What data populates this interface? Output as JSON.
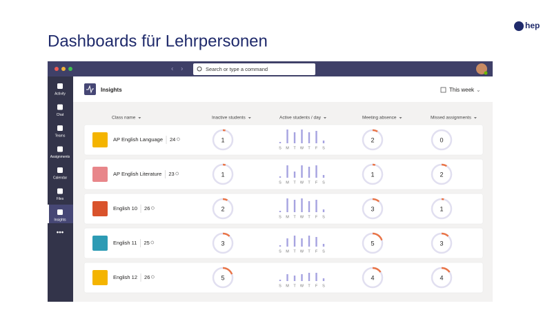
{
  "slide": {
    "title": "Dashboards für Lehrpersonen",
    "logo": "hep"
  },
  "app": {
    "search_placeholder": "Search or type a command",
    "rail": [
      "Activity",
      "Chat",
      "Teams",
      "Assignments",
      "Calendar",
      "Files",
      "Insights"
    ],
    "active_rail": "Insights",
    "page_title": "Insights",
    "period": "This week",
    "columns": [
      "Class name",
      "Inactive students",
      "Active students / day",
      "Meeting absence",
      "Missed assignments"
    ],
    "weekdays": [
      "S",
      "M",
      "T",
      "W",
      "T",
      "F",
      "S"
    ],
    "rows": [
      {
        "name": "AP English Language",
        "students": 24,
        "inactive": 1,
        "activity": [
          10,
          100,
          80,
          100,
          80,
          90,
          20
        ],
        "meeting_absence": 2,
        "missed_assignments": 0
      },
      {
        "name": "AP English Literature",
        "students": 23,
        "inactive": 1,
        "activity": [
          10,
          90,
          45,
          90,
          80,
          90,
          20
        ],
        "meeting_absence": 1,
        "missed_assignments": 2
      },
      {
        "name": "English 10",
        "students": 26,
        "inactive": 2,
        "activity": [
          10,
          100,
          90,
          100,
          80,
          90,
          20
        ],
        "meeting_absence": 3,
        "missed_assignments": 1
      },
      {
        "name": "English 11",
        "students": 25,
        "inactive": 3,
        "activity": [
          10,
          60,
          80,
          60,
          80,
          70,
          20
        ],
        "meeting_absence": 5,
        "missed_assignments": 3
      },
      {
        "name": "English 12",
        "students": 26,
        "inactive": 5,
        "activity": [
          10,
          50,
          40,
          50,
          60,
          60,
          20
        ],
        "meeting_absence": 4,
        "missed_assignments": 4
      }
    ]
  }
}
